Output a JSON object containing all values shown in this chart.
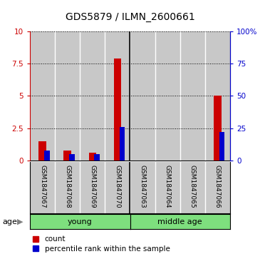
{
  "title": "GDS5879 / ILMN_2600661",
  "samples": [
    "GSM1847067",
    "GSM1847068",
    "GSM1847069",
    "GSM1847070",
    "GSM1847063",
    "GSM1847064",
    "GSM1847065",
    "GSM1847066"
  ],
  "red_values": [
    1.5,
    0.8,
    0.6,
    7.9,
    0.0,
    0.0,
    0.0,
    5.0
  ],
  "blue_pct": [
    8,
    5,
    5,
    26,
    0,
    0,
    0,
    22
  ],
  "ylim_left": [
    0,
    10
  ],
  "ylim_right": [
    0,
    100
  ],
  "yticks_left": [
    0,
    2.5,
    5,
    7.5,
    10
  ],
  "yticks_right": [
    0,
    25,
    50,
    75,
    100
  ],
  "ytick_labels_left": [
    "0",
    "2.5",
    "5",
    "7.5",
    "10"
  ],
  "ytick_labels_right": [
    "0",
    "25",
    "50",
    "75",
    "100%"
  ],
  "groups": [
    {
      "label": "young",
      "start": 0,
      "end": 3,
      "color": "#7EDF7E"
    },
    {
      "label": "middle age",
      "start": 4,
      "end": 7,
      "color": "#7EDF7E"
    }
  ],
  "group_label_attr": "age",
  "bar_width": 0.3,
  "red_color": "#CC0000",
  "blue_color": "#0000CC",
  "bg_color": "#C8C8C8",
  "sep_color": "#888888",
  "legend_count": "count",
  "legend_pct": "percentile rank within the sample",
  "title_fontsize": 10,
  "tick_fontsize": 7.5,
  "label_fontsize": 8
}
